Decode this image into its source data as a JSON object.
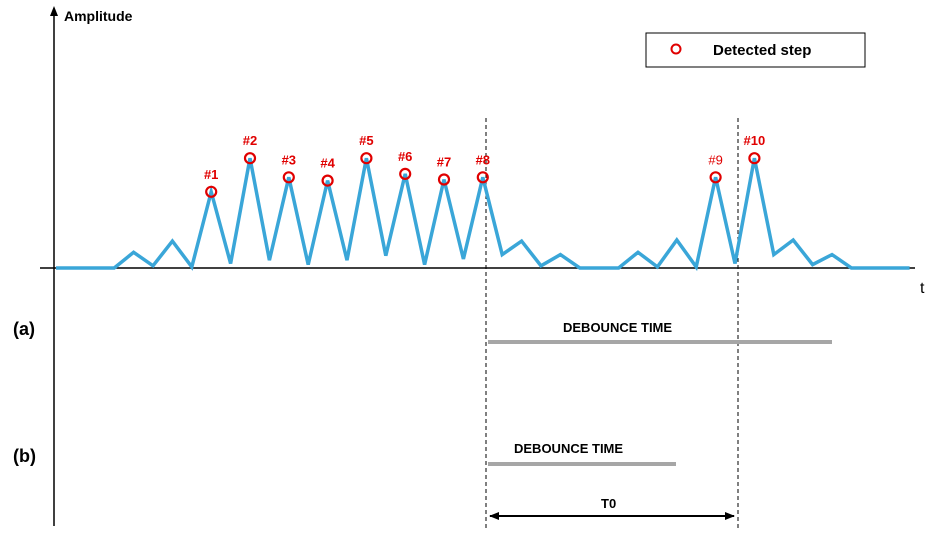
{
  "axes": {
    "y_label": "Amplitude",
    "x_label": "t"
  },
  "legend": {
    "label": "Detected step",
    "marker_color": "#e00000"
  },
  "signal": {
    "color": "#3aa6d8",
    "values": [
      0,
      0,
      0,
      0,
      0.14,
      0.02,
      0.24,
      0.01,
      0.68,
      0.04,
      0.98,
      0.07,
      0.81,
      0.03,
      0.78,
      0.07,
      0.98,
      0.11,
      0.84,
      0.03,
      0.79,
      0.08,
      0.81,
      0.12,
      0.24,
      0.02,
      0.12,
      0,
      0,
      0,
      0.14,
      0.01,
      0.25,
      0.01,
      0.81,
      0.04,
      0.98,
      0.12,
      0.25,
      0.03,
      0.12,
      0,
      0,
      0,
      0
    ]
  },
  "steps": [
    {
      "label": "#1",
      "index": 8
    },
    {
      "label": "#2",
      "index": 10
    },
    {
      "label": "#3",
      "index": 12
    },
    {
      "label": "#4",
      "index": 14
    },
    {
      "label": "#5",
      "index": 16
    },
    {
      "label": "#6",
      "index": 18
    },
    {
      "label": "#7",
      "index": 20
    },
    {
      "label": "#8",
      "index": 22
    },
    {
      "label": "#9",
      "index": 34
    },
    {
      "label": "#10",
      "index": 36
    }
  ],
  "rows": {
    "a": {
      "label": "(a)",
      "debounce_label": "DEBOUNCE TIME"
    },
    "b": {
      "label": "(b)",
      "debounce_label": "DEBOUNCE TIME",
      "interval_label": "T0"
    }
  },
  "colors": {
    "axis": "#000000",
    "debounce_bar": "#a6a6a6",
    "text": "#000000",
    "step_label": "#e00000"
  }
}
